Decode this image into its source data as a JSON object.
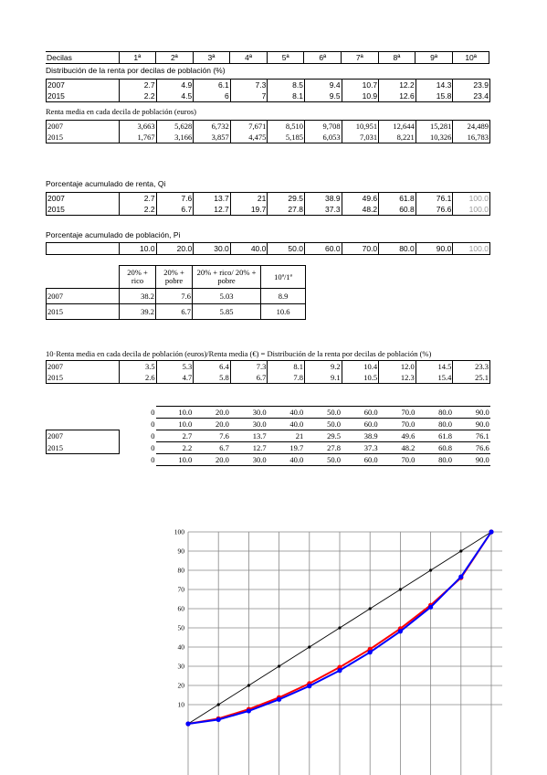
{
  "deciles_header": {
    "label": "Decilas",
    "columns": [
      "1ª",
      "2ª",
      "3ª",
      "4ª",
      "5ª",
      "6ª",
      "7ª",
      "8ª",
      "9ª",
      "10ª"
    ]
  },
  "distribucion": {
    "title": "Distribución de la renta por decilas de población (%)",
    "rows": [
      {
        "year": "2007",
        "values": [
          "2.7",
          "4.9",
          "6.1",
          "7.3",
          "8.5",
          "9.4",
          "10.7",
          "12.2",
          "14.3",
          "23.9"
        ]
      },
      {
        "year": "2015",
        "values": [
          "2.2",
          "4.5",
          "6",
          "7",
          "8.1",
          "9.5",
          "10.9",
          "12.6",
          "15.8",
          "23.4"
        ]
      }
    ]
  },
  "renta_media": {
    "title": "Renta media en cada decila de población (euros)",
    "rows": [
      {
        "year": "2007",
        "values": [
          "3,663",
          "5,628",
          "6,732",
          "7,671",
          "8,510",
          "9,708",
          "10,951",
          "12,644",
          "15,281",
          "24,489"
        ]
      },
      {
        "year": "2015",
        "values": [
          "1,767",
          "3,166",
          "3,857",
          "4,475",
          "5,185",
          "6,053",
          "7,031",
          "8,221",
          "10,326",
          "16,783"
        ]
      }
    ]
  },
  "acumulado_renta": {
    "title": "Porcentaje acumulado de renta, Qi",
    "rows": [
      {
        "year": "2007",
        "values": [
          "2.7",
          "7.6",
          "13.7",
          "21",
          "29.5",
          "38.9",
          "49.6",
          "61.8",
          "76.1",
          "100.0"
        ]
      },
      {
        "year": "2015",
        "values": [
          "2.2",
          "6.7",
          "12.7",
          "19.7",
          "27.8",
          "37.3",
          "48.2",
          "60.8",
          "76.6",
          "100.0"
        ]
      }
    ]
  },
  "acumulado_poblacion": {
    "title": "Porcentaje acumulado de población, Pi",
    "values": [
      "10.0",
      "20.0",
      "30.0",
      "40.0",
      "50.0",
      "60.0",
      "70.0",
      "80.0",
      "90.0",
      "100.0"
    ]
  },
  "ratios": {
    "headers": [
      [
        "20% +",
        "rico"
      ],
      [
        "20% +",
        "pobre"
      ],
      [
        "20% + rico/ 20% +",
        "pobre"
      ],
      [
        "10ª/1ª"
      ]
    ],
    "rows": [
      {
        "year": "2007",
        "values": [
          "38.2",
          "7.6",
          "5.03",
          "8.9"
        ]
      },
      {
        "year": "2015",
        "values": [
          "39.2",
          "6.7",
          "5.85",
          "10.6"
        ]
      }
    ]
  },
  "relativo": {
    "title": "10·Renta media en cada decila de población (euros)/Renta media (€) = Distribución de la renta por decilas de población (%)",
    "rows": [
      {
        "year": "2007",
        "values": [
          "3.5",
          "5.3",
          "6.4",
          "7.3",
          "8.1",
          "9.2",
          "10.4",
          "12.0",
          "14.5",
          "23.3"
        ]
      },
      {
        "year": "2015",
        "values": [
          "2.6",
          "4.7",
          "5.8",
          "6.7",
          "7.8",
          "9.1",
          "10.5",
          "12.3",
          "15.4",
          "25.1"
        ]
      }
    ]
  },
  "lorenz_table": {
    "rows": [
      {
        "year": "",
        "values": [
          "0",
          "10.0",
          "20.0",
          "30.0",
          "40.0",
          "50.0",
          "60.0",
          "70.0",
          "80.0",
          "90.0"
        ]
      },
      {
        "year": "",
        "values": [
          "0",
          "10.0",
          "20.0",
          "30.0",
          "40.0",
          "50.0",
          "60.0",
          "70.0",
          "80.0",
          "90.0"
        ]
      },
      {
        "year": "2007",
        "values": [
          "0",
          "2.7",
          "7.6",
          "13.7",
          "21",
          "29.5",
          "38.9",
          "49.6",
          "61.8",
          "76.1"
        ]
      },
      {
        "year": "2015",
        "values": [
          "0",
          "2.2",
          "6.7",
          "12.7",
          "19.7",
          "27.8",
          "37.3",
          "48.2",
          "60.8",
          "76.6"
        ]
      },
      {
        "year": "",
        "values": [
          "0",
          "10.0",
          "20.0",
          "30.0",
          "40.0",
          "50.0",
          "60.0",
          "70.0",
          "80.0",
          "90.0"
        ]
      }
    ]
  },
  "chart_data": {
    "type": "line",
    "x": [
      0,
      10,
      20,
      30,
      40,
      50,
      60,
      70,
      80,
      90,
      100
    ],
    "series": [
      {
        "values": [
          0,
          10,
          20,
          30,
          40,
          50,
          60,
          70,
          80,
          90,
          100
        ],
        "color": "#000000"
      },
      {
        "values": [
          0,
          2.7,
          7.6,
          13.7,
          21,
          29.5,
          38.9,
          49.6,
          61.8,
          76.1,
          100
        ],
        "color": "#ff0000"
      },
      {
        "values": [
          0,
          2.2,
          6.7,
          12.7,
          19.7,
          27.8,
          37.3,
          48.2,
          60.8,
          76.6,
          100
        ],
        "color": "#0000ff"
      }
    ],
    "yticks": [
      "100",
      "90",
      "80",
      "70",
      "60",
      "50",
      "40",
      "30",
      "20",
      "10"
    ],
    "ylim": [
      0,
      100
    ],
    "xlim": [
      0,
      100
    ],
    "grid": true
  }
}
